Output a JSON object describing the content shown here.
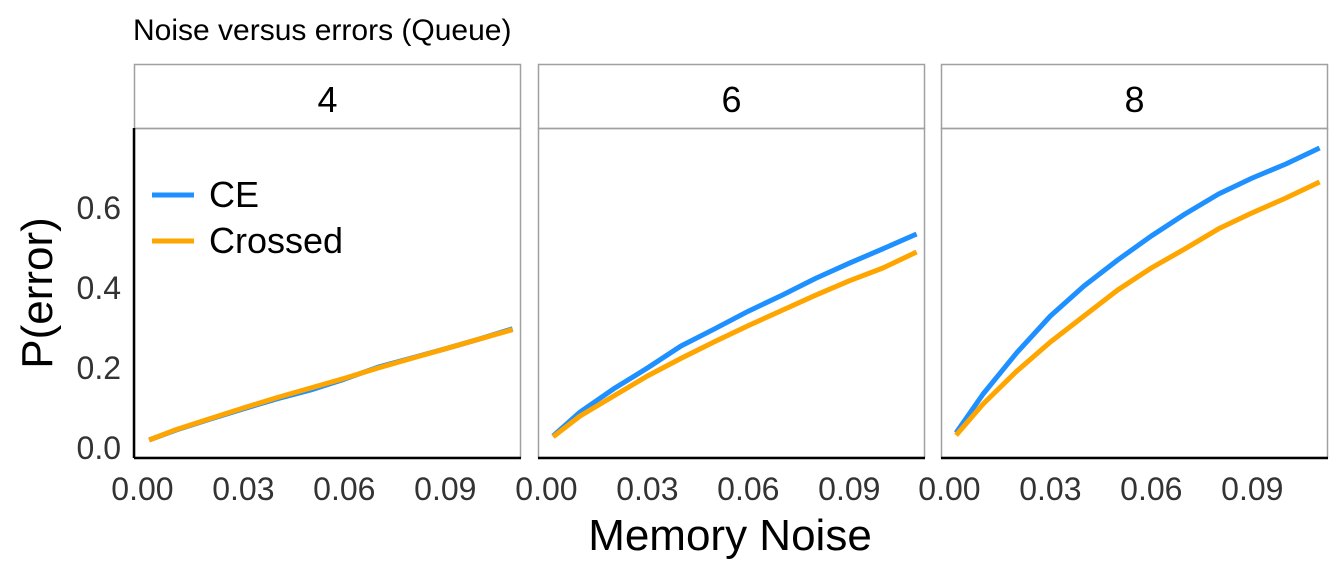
{
  "chart_data": {
    "type": "line",
    "title": "Noise versus errors (Queue)",
    "xlabel": "Memory Noise",
    "ylabel": "P(error)",
    "xlim": [
      -0.0025,
      0.1125
    ],
    "ylim": [
      -0.025,
      0.8
    ],
    "x_ticks": [
      0.0,
      0.03,
      0.06,
      0.09
    ],
    "x_tick_labels": [
      "0.00",
      "0.03",
      "0.06",
      "0.09"
    ],
    "y_ticks": [
      0.0,
      0.2,
      0.4,
      0.6
    ],
    "y_tick_labels": [
      "0.0",
      "0.2",
      "0.4",
      "0.6"
    ],
    "grid": false,
    "legend_position": "top-left inside first panel",
    "series_colors": {
      "CE": "#1E90FF",
      "Crossed": "#FFA500"
    },
    "legend": [
      {
        "name": "CE",
        "color": "#1E90FF"
      },
      {
        "name": "Crossed",
        "color": "#FFA500"
      }
    ],
    "x": [
      0.002,
      0.01,
      0.02,
      0.03,
      0.04,
      0.05,
      0.06,
      0.07,
      0.08,
      0.09,
      0.1,
      0.11
    ],
    "panels": [
      {
        "label": "4",
        "series": [
          {
            "name": "CE",
            "values": [
              0.02,
              0.045,
              0.072,
              0.098,
              0.123,
              0.145,
              0.172,
              0.202,
              0.225,
              0.248,
              0.272,
              0.298
            ]
          },
          {
            "name": "Crossed",
            "values": [
              0.02,
              0.046,
              0.073,
              0.1,
              0.126,
              0.15,
              0.174,
              0.2,
              0.224,
              0.248,
              0.272,
              0.296
            ]
          }
        ]
      },
      {
        "label": "6",
        "series": [
          {
            "name": "CE",
            "values": [
              0.03,
              0.09,
              0.148,
              0.2,
              0.255,
              0.298,
              0.342,
              0.382,
              0.424,
              0.462,
              0.498,
              0.535
            ]
          },
          {
            "name": "Crossed",
            "values": [
              0.028,
              0.08,
              0.13,
              0.18,
              0.224,
              0.266,
              0.306,
              0.344,
              0.382,
              0.418,
              0.45,
              0.49
            ]
          }
        ]
      },
      {
        "label": "8",
        "series": [
          {
            "name": "CE",
            "values": [
              0.038,
              0.135,
              0.238,
              0.33,
              0.405,
              0.47,
              0.53,
              0.585,
              0.635,
              0.675,
              0.71,
              0.75
            ]
          },
          {
            "name": "Crossed",
            "values": [
              0.032,
              0.11,
              0.192,
              0.265,
              0.33,
              0.395,
              0.45,
              0.498,
              0.548,
              0.588,
              0.625,
              0.665
            ]
          }
        ]
      }
    ]
  }
}
